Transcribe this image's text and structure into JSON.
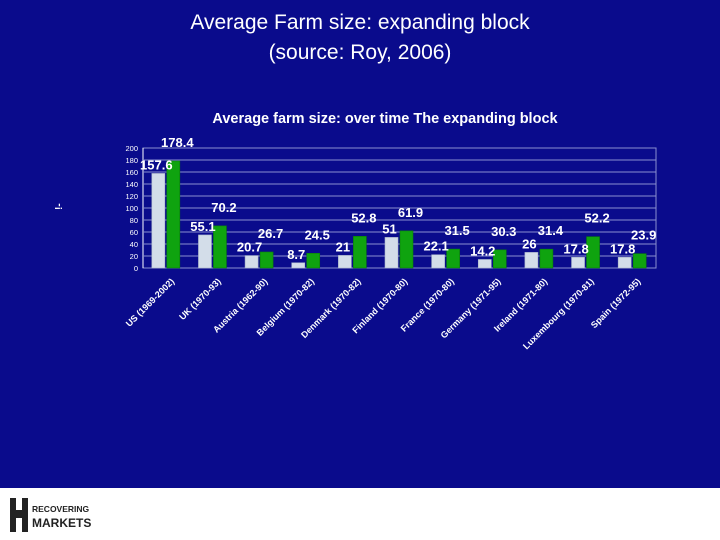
{
  "slide": {
    "title_line1": "Average Farm size: expanding block",
    "title_line2": "(source: Roy, 2006)",
    "background": "#0a0b8c"
  },
  "chart_data": {
    "type": "bar",
    "title": "Average farm size: over time  The expanding block",
    "ylim": [
      0,
      200
    ],
    "yticks": [
      "0",
      "20",
      "40",
      "60",
      "80",
      "100",
      "120",
      "140",
      "160",
      "180",
      "200"
    ],
    "grid": true,
    "categories": [
      "US (1969-2002)",
      "UK (1970-93)",
      "Austria (1962-90)",
      "Belgium (1970-82)",
      "Denmark (1970-82)",
      "Finland (1970-80)",
      "France (1970-80)",
      "Germany (1971-95)",
      "Ireland (1971-80)",
      "Luxembourg (1970-81)",
      "Spain (1972-95)"
    ],
    "series": [
      {
        "color": "#d3dde9",
        "values": [
          157.6,
          55.1,
          20.7,
          8.7,
          21,
          51,
          22.1,
          14.2,
          26,
          17.8,
          17.8
        ]
      },
      {
        "color": "#0fa30f",
        "values": [
          178.4,
          70.2,
          26.7,
          24.5,
          52.8,
          61.9,
          31.5,
          30.3,
          31.4,
          52.2,
          23.9
        ]
      }
    ],
    "data_labels": [
      [
        "157.6",
        "55.1",
        "20.7",
        "8.7",
        "21",
        "51",
        "22.1",
        "14.2",
        "26",
        "17.8",
        "17.8"
      ],
      [
        "178.4",
        "70.2",
        "26.7",
        "24.5",
        "52.8",
        "61.9",
        "31.5",
        "30.3",
        "31.4",
        "52.2",
        "23.9"
      ]
    ],
    "stray_axis_mark": "!-"
  },
  "logo": {
    "line1": "RECOVERING",
    "line2": "MARKETS"
  }
}
